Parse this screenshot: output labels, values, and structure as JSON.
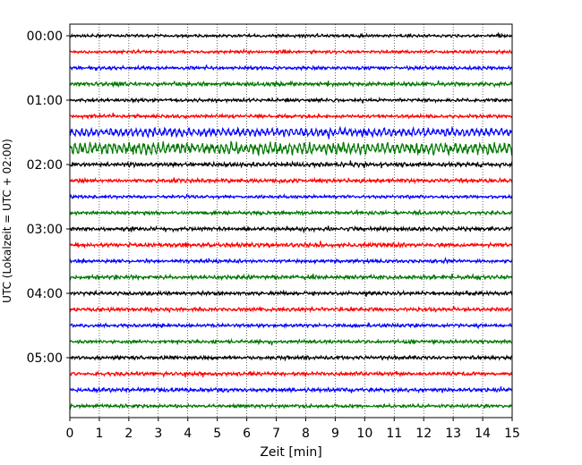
{
  "chart_data": {
    "type": "line",
    "title": "",
    "xlabel": "Zeit  [min]",
    "ylabel": "UTC (Lokalzeit = UTC + 02:00)",
    "xlim": [
      0,
      15
    ],
    "x_ticks": [
      "0",
      "1",
      "2",
      "3",
      "4",
      "5",
      "6",
      "7",
      "8",
      "9",
      "10",
      "11",
      "12",
      "13",
      "14",
      "15"
    ],
    "y_tick_labels": [
      "00:00",
      "01:00",
      "02:00",
      "03:00",
      "04:00",
      "05:00"
    ],
    "y_tick_rows": [
      0,
      4,
      8,
      12,
      16,
      20
    ],
    "grid": "vertical dotted at each minute",
    "trace_colors": [
      "#000000",
      "#ff0000",
      "#0000ff",
      "#007700"
    ],
    "rows": [
      {
        "start": "00:00",
        "color": "#000000",
        "amplitude": 0.9
      },
      {
        "start": "00:15",
        "color": "#ff0000",
        "amplitude": 0.9
      },
      {
        "start": "00:30",
        "color": "#0000ff",
        "amplitude": 1.0
      },
      {
        "start": "00:45",
        "color": "#007700",
        "amplitude": 1.2
      },
      {
        "start": "01:00",
        "color": "#000000",
        "amplitude": 1.0
      },
      {
        "start": "01:15",
        "color": "#ff0000",
        "amplitude": 1.0
      },
      {
        "start": "01:30",
        "color": "#0000ff",
        "amplitude": 1.8
      },
      {
        "start": "01:45",
        "color": "#007700",
        "amplitude": 2.6
      },
      {
        "start": "02:00",
        "color": "#000000",
        "amplitude": 1.3
      },
      {
        "start": "02:15",
        "color": "#ff0000",
        "amplitude": 1.2
      },
      {
        "start": "02:30",
        "color": "#0000ff",
        "amplitude": 0.9
      },
      {
        "start": "02:45",
        "color": "#007700",
        "amplitude": 1.0
      },
      {
        "start": "03:00",
        "color": "#000000",
        "amplitude": 1.2
      },
      {
        "start": "03:15",
        "color": "#ff0000",
        "amplitude": 1.3
      },
      {
        "start": "03:30",
        "color": "#0000ff",
        "amplitude": 1.0
      },
      {
        "start": "03:45",
        "color": "#007700",
        "amplitude": 1.2
      },
      {
        "start": "04:00",
        "color": "#000000",
        "amplitude": 1.1
      },
      {
        "start": "04:15",
        "color": "#ff0000",
        "amplitude": 1.1
      },
      {
        "start": "04:30",
        "color": "#0000ff",
        "amplitude": 1.0
      },
      {
        "start": "04:45",
        "color": "#007700",
        "amplitude": 1.0
      },
      {
        "start": "05:00",
        "color": "#000000",
        "amplitude": 1.1
      },
      {
        "start": "05:15",
        "color": "#ff0000",
        "amplitude": 1.1
      },
      {
        "start": "05:30",
        "color": "#0000ff",
        "amplitude": 1.2
      },
      {
        "start": "05:45",
        "color": "#007700",
        "amplitude": 1.0
      }
    ]
  }
}
